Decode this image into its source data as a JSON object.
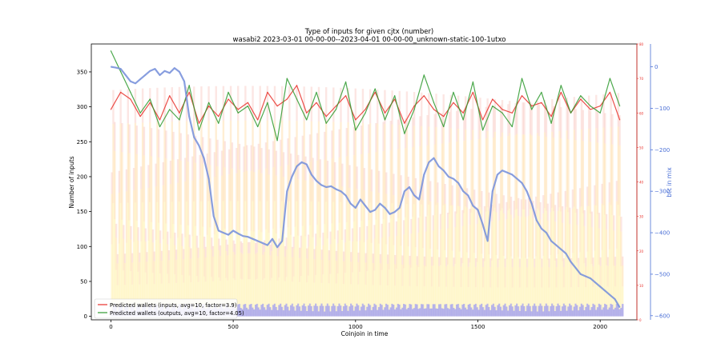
{
  "chart_data": {
    "type": "line",
    "title": "Type of inputs for given cjtx (number)",
    "subtitle": "wasabi2 2023-03-01 00-00-00--2023-04-01 00-00-00_unknown-static-100-1utxo",
    "xlabel": "Coinjoin in time",
    "ylabel": "Number of inputs",
    "y2label": "btc in mix",
    "xlim": [
      -80,
      2150
    ],
    "ylim": [
      -5,
      390
    ],
    "y3lim": [
      0,
      80
    ],
    "y2lim": [
      -610,
      55
    ],
    "xticks": [
      0,
      500,
      1000,
      1500,
      2000
    ],
    "yticks": [
      0,
      50,
      100,
      150,
      200,
      250,
      300,
      350
    ],
    "y3ticks": [
      0,
      10,
      20,
      30,
      40,
      50,
      60,
      70,
      80
    ],
    "y2ticks": [
      0,
      -100,
      -200,
      -300,
      -400,
      -500,
      -600
    ],
    "x_count": 2090,
    "series": [
      {
        "name": "Predicted wallets (inputs, avg=10, factor=3.9)",
        "axis": "right-inner",
        "color": "#e8302a",
        "x": [
          0,
          40,
          80,
          120,
          160,
          200,
          240,
          280,
          320,
          360,
          400,
          440,
          480,
          520,
          560,
          600,
          640,
          680,
          720,
          760,
          800,
          840,
          880,
          920,
          960,
          1000,
          1040,
          1080,
          1120,
          1160,
          1200,
          1240,
          1280,
          1320,
          1360,
          1400,
          1440,
          1480,
          1520,
          1560,
          1600,
          1640,
          1680,
          1720,
          1760,
          1800,
          1840,
          1880,
          1920,
          1960,
          2000,
          2040,
          2080
        ],
        "values": [
          61,
          66,
          64,
          59,
          63,
          58,
          65,
          60,
          66,
          57,
          62,
          59,
          64,
          61,
          63,
          58,
          66,
          62,
          64,
          68,
          60,
          63,
          59,
          62,
          65,
          58,
          61,
          66,
          60,
          64,
          57,
          62,
          65,
          61,
          59,
          63,
          60,
          66,
          58,
          64,
          61,
          60,
          65,
          62,
          63,
          59,
          66,
          60,
          64,
          61,
          62,
          66,
          58
        ]
      },
      {
        "name": "Predicted wallets (outputs, avg=10, factor=4.05)",
        "axis": "right-inner",
        "color": "#2e9a2e",
        "x": [
          0,
          40,
          80,
          120,
          160,
          200,
          240,
          280,
          320,
          360,
          400,
          440,
          480,
          520,
          560,
          600,
          640,
          680,
          720,
          760,
          800,
          840,
          880,
          920,
          960,
          1000,
          1040,
          1080,
          1120,
          1160,
          1200,
          1240,
          1280,
          1320,
          1360,
          1400,
          1440,
          1480,
          1520,
          1560,
          1600,
          1640,
          1680,
          1720,
          1760,
          1800,
          1840,
          1880,
          1920,
          1960,
          2000,
          2040,
          2080
        ],
        "values": [
          78,
          72,
          66,
          60,
          64,
          56,
          61,
          58,
          68,
          55,
          63,
          57,
          66,
          60,
          62,
          56,
          63,
          52,
          70,
          64,
          58,
          66,
          57,
          61,
          69,
          55,
          60,
          67,
          58,
          65,
          54,
          61,
          71,
          63,
          56,
          66,
          58,
          69,
          55,
          62,
          60,
          56,
          70,
          61,
          66,
          57,
          68,
          60,
          65,
          62,
          60,
          70,
          62
        ]
      },
      {
        "name": "btc in mix",
        "axis": "right-outer",
        "color": "#7b94dc",
        "x": [
          0,
          20,
          40,
          60,
          80,
          100,
          120,
          140,
          160,
          180,
          200,
          220,
          240,
          260,
          280,
          300,
          320,
          340,
          360,
          380,
          400,
          420,
          440,
          460,
          480,
          500,
          520,
          540,
          560,
          580,
          600,
          620,
          640,
          660,
          680,
          700,
          720,
          740,
          760,
          780,
          800,
          820,
          840,
          860,
          880,
          900,
          920,
          940,
          960,
          980,
          1000,
          1020,
          1040,
          1060,
          1080,
          1100,
          1120,
          1140,
          1160,
          1180,
          1200,
          1220,
          1240,
          1260,
          1280,
          1300,
          1320,
          1340,
          1360,
          1380,
          1400,
          1420,
          1440,
          1460,
          1480,
          1500,
          1520,
          1540,
          1560,
          1580,
          1600,
          1620,
          1640,
          1660,
          1680,
          1700,
          1720,
          1740,
          1760,
          1780,
          1800,
          1820,
          1840,
          1860,
          1880,
          1900,
          1920,
          1940,
          1960,
          1980,
          2000,
          2020,
          2040,
          2060,
          2080
        ],
        "values": [
          0,
          -2,
          -5,
          -20,
          -35,
          -40,
          -30,
          -20,
          -10,
          -5,
          -20,
          -10,
          -15,
          -3,
          -12,
          -35,
          -120,
          -170,
          -190,
          -220,
          -270,
          -360,
          -395,
          -400,
          -405,
          -395,
          -402,
          -408,
          -410,
          -415,
          -420,
          -425,
          -430,
          -415,
          -435,
          -420,
          -300,
          -265,
          -240,
          -230,
          -235,
          -260,
          -275,
          -285,
          -290,
          -288,
          -295,
          -300,
          -310,
          -330,
          -340,
          -320,
          -335,
          -350,
          -345,
          -330,
          -340,
          -355,
          -350,
          -340,
          -300,
          -290,
          -310,
          -320,
          -260,
          -230,
          -220,
          -240,
          -250,
          -265,
          -270,
          -280,
          -300,
          -310,
          -335,
          -345,
          -380,
          -420,
          -300,
          -260,
          -250,
          -255,
          -260,
          -270,
          -280,
          -300,
          -330,
          -370,
          -390,
          -400,
          -420,
          -430,
          -440,
          -450,
          -470,
          -485,
          -500,
          -505,
          -510,
          -520,
          -530,
          -540,
          -550,
          -560,
          -580
        ]
      }
    ],
    "y2_series_name": "btc in mix",
    "legend": "lower-left",
    "legend_labels": [
      "Predicted wallets (inputs, avg=10, factor=3.9)",
      "Predicted wallets (outputs, avg=10, factor=4.05)"
    ],
    "background_stacks": {
      "description": "stacked input-type bars per coinjoin (yellow/orange/salmon) with blue remix layer",
      "colors": [
        "#fff3b0",
        "#ffd9a0",
        "#f7b6b0",
        "#8080ff"
      ],
      "approx_top": 330
    }
  }
}
